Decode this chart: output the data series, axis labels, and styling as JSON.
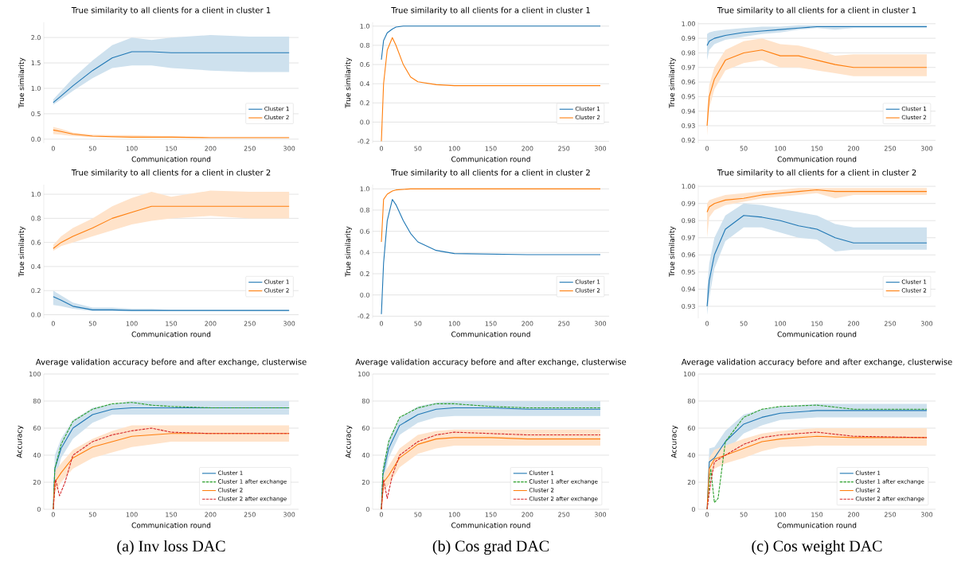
{
  "chart_data": [
    {
      "type": "line",
      "title": "True similarity to all clients for a client in cluster 1",
      "xlabel": "Communication round",
      "ylabel": "True similarity",
      "xlim": [
        -12,
        312
      ],
      "xticks": [
        0,
        50,
        100,
        150,
        200,
        250,
        300
      ],
      "ylim": [
        -0.08,
        2.3
      ],
      "yticks": [
        {
          "value": 0,
          "label": "0.0"
        },
        0.5,
        {
          "value": 1,
          "label": "1.0"
        },
        1.5,
        {
          "value": 2,
          "label": "2.0"
        }
      ],
      "grid": "y",
      "legend": "bottom right",
      "x": [
        0,
        10,
        25,
        50,
        75,
        100,
        125,
        150,
        200,
        250,
        300
      ],
      "series": [
        {
          "name": "Cluster 1",
          "color": "#1f77b4",
          "values": [
            0.72,
            0.85,
            1.05,
            1.35,
            1.6,
            1.72,
            1.72,
            1.7,
            1.7,
            1.7,
            1.7
          ],
          "lower": [
            0.68,
            0.78,
            0.95,
            1.2,
            1.4,
            1.45,
            1.45,
            1.4,
            1.35,
            1.32,
            1.32
          ],
          "upper": [
            0.78,
            0.95,
            1.2,
            1.55,
            1.85,
            2.0,
            1.95,
            2.0,
            2.05,
            2.02,
            2.02
          ]
        },
        {
          "name": "Cluster 2",
          "color": "#ff7f0e",
          "values": [
            0.18,
            0.15,
            0.1,
            0.06,
            0.05,
            0.04,
            0.04,
            0.04,
            0.03,
            0.03,
            0.03
          ],
          "lower": [
            0.1,
            0.09,
            0.06,
            0.04,
            0.03,
            0.03,
            0.03,
            0.03,
            0.03,
            0.03,
            0.03
          ],
          "upper": [
            0.24,
            0.2,
            0.13,
            0.09,
            0.08,
            0.08,
            0.07,
            0.06,
            0.04,
            0.04,
            0.04
          ]
        }
      ]
    },
    {
      "type": "line",
      "title": "True similarity to all clients for a client in cluster 1",
      "xlabel": "Communication round",
      "ylabel": "True similarity",
      "xlim": [
        -12,
        312
      ],
      "xticks": [
        0,
        50,
        100,
        150,
        200,
        250,
        300
      ],
      "ylim": [
        -0.22,
        1.04
      ],
      "yticks": [
        -0.2,
        {
          "value": 0,
          "label": "0.0"
        },
        0.2,
        0.4,
        0.6,
        0.8,
        {
          "value": 1,
          "label": "1.0"
        }
      ],
      "grid": "y",
      "legend": "bottom right",
      "x": [
        0,
        3,
        8,
        15,
        20,
        30,
        40,
        50,
        75,
        100,
        200,
        300
      ],
      "series": [
        {
          "name": "Cluster 1",
          "color": "#1f77b4",
          "values": [
            0.65,
            0.85,
            0.93,
            0.97,
            0.99,
            1.0,
            1.0,
            1.0,
            1.0,
            1.0,
            1.0,
            1.0
          ]
        },
        {
          "name": "Cluster 2",
          "color": "#ff7f0e",
          "values": [
            -0.2,
            0.4,
            0.75,
            0.88,
            0.8,
            0.6,
            0.47,
            0.42,
            0.39,
            0.38,
            0.38,
            0.38
          ]
        }
      ]
    },
    {
      "type": "line",
      "title": "True similarity to all clients for a client in cluster 1",
      "xlabel": "Communication round",
      "ylabel": "True similarity",
      "xlim": [
        -12,
        312
      ],
      "xticks": [
        0,
        50,
        100,
        150,
        200,
        250,
        300
      ],
      "ylim": [
        0.918,
        1.001
      ],
      "yticks": [
        0.92,
        0.93,
        0.94,
        0.95,
        0.96,
        0.97,
        0.98,
        0.99,
        {
          "value": 1,
          "label": "1.00"
        }
      ],
      "grid": "y",
      "legend": "bottom right",
      "x": [
        0,
        3,
        10,
        25,
        50,
        75,
        100,
        125,
        150,
        175,
        200,
        250,
        300
      ],
      "series": [
        {
          "name": "Cluster 1",
          "color": "#1f77b4",
          "values": [
            0.985,
            0.988,
            0.99,
            0.992,
            0.994,
            0.995,
            0.996,
            0.997,
            0.998,
            0.998,
            0.998,
            0.998,
            0.998
          ],
          "lower": [
            0.975,
            0.982,
            0.986,
            0.989,
            0.991,
            0.993,
            0.994,
            0.996,
            0.997,
            0.996,
            0.997,
            0.997,
            0.997
          ],
          "upper": [
            0.993,
            0.994,
            0.995,
            0.996,
            0.997,
            0.998,
            0.998,
            0.999,
            0.999,
            0.999,
            0.999,
            0.999,
            0.999
          ]
        },
        {
          "name": "Cluster 2",
          "color": "#ff7f0e",
          "values": [
            0.93,
            0.95,
            0.962,
            0.975,
            0.98,
            0.982,
            0.978,
            0.978,
            0.975,
            0.972,
            0.97,
            0.97,
            0.97
          ],
          "lower": [
            0.923,
            0.942,
            0.955,
            0.968,
            0.973,
            0.975,
            0.97,
            0.97,
            0.968,
            0.966,
            0.964,
            0.964,
            0.964
          ],
          "upper": [
            0.94,
            0.958,
            0.97,
            0.982,
            0.988,
            0.99,
            0.986,
            0.985,
            0.982,
            0.978,
            0.979,
            0.979,
            0.979
          ]
        }
      ]
    },
    {
      "type": "line",
      "title": "True similarity to all clients for a client in cluster 2",
      "xlabel": "Communication round",
      "ylabel": "True similarity",
      "xlim": [
        -12,
        312
      ],
      "xticks": [
        0,
        50,
        100,
        150,
        200,
        250,
        300
      ],
      "ylim": [
        -0.03,
        1.08
      ],
      "yticks": [
        {
          "value": 0,
          "label": "0.0"
        },
        0.2,
        0.4,
        0.6,
        0.8,
        {
          "value": 1,
          "label": "1.0"
        }
      ],
      "grid": "y",
      "legend": "bottom right",
      "x": [
        0,
        10,
        25,
        50,
        75,
        100,
        125,
        150,
        200,
        250,
        300
      ],
      "series": [
        {
          "name": "Cluster 1",
          "color": "#1f77b4",
          "values": [
            0.15,
            0.12,
            0.07,
            0.04,
            0.04,
            0.035,
            0.035,
            0.035,
            0.035,
            0.035,
            0.035
          ],
          "lower": [
            0.08,
            0.07,
            0.05,
            0.03,
            0.03,
            0.03,
            0.03,
            0.03,
            0.03,
            0.03,
            0.03
          ],
          "upper": [
            0.2,
            0.16,
            0.1,
            0.06,
            0.06,
            0.05,
            0.05,
            0.04,
            0.04,
            0.04,
            0.04
          ]
        },
        {
          "name": "Cluster 2",
          "color": "#ff7f0e",
          "values": [
            0.55,
            0.6,
            0.65,
            0.72,
            0.8,
            0.85,
            0.9,
            0.9,
            0.9,
            0.9,
            0.9
          ],
          "lower": [
            0.53,
            0.57,
            0.6,
            0.65,
            0.7,
            0.75,
            0.78,
            0.8,
            0.82,
            0.8,
            0.8
          ],
          "upper": [
            0.58,
            0.65,
            0.72,
            0.8,
            0.9,
            0.97,
            1.02,
            0.98,
            1.03,
            1.02,
            1.02
          ]
        }
      ]
    },
    {
      "type": "line",
      "title": "True similarity to all clients for a client in cluster 2",
      "xlabel": "Communication round",
      "ylabel": "True similarity",
      "xlim": [
        -12,
        312
      ],
      "xticks": [
        0,
        50,
        100,
        150,
        200,
        250,
        300
      ],
      "ylim": [
        -0.22,
        1.04
      ],
      "yticks": [
        -0.2,
        {
          "value": 0,
          "label": "0.0"
        },
        0.2,
        0.4,
        0.6,
        0.8,
        {
          "value": 1,
          "label": "1.0"
        }
      ],
      "grid": "y",
      "legend": "bottom right",
      "x": [
        0,
        3,
        8,
        15,
        20,
        30,
        40,
        50,
        75,
        100,
        200,
        300
      ],
      "series": [
        {
          "name": "Cluster 1",
          "color": "#1f77b4",
          "values": [
            -0.18,
            0.3,
            0.7,
            0.9,
            0.85,
            0.7,
            0.58,
            0.5,
            0.42,
            0.39,
            0.38,
            0.38
          ]
        },
        {
          "name": "Cluster 2",
          "color": "#ff7f0e",
          "values": [
            0.5,
            0.9,
            0.95,
            0.98,
            0.99,
            0.995,
            1.0,
            1.0,
            1.0,
            1.0,
            1.0,
            1.0
          ]
        }
      ]
    },
    {
      "type": "line",
      "title": "True similarity to all clients for a client in cluster 2",
      "xlabel": "Communication round",
      "ylabel": "True similarity",
      "xlim": [
        -12,
        312
      ],
      "xticks": [
        0,
        50,
        100,
        150,
        200,
        250,
        300
      ],
      "ylim": [
        0.923,
        1.001
      ],
      "yticks": [
        0.93,
        0.94,
        0.95,
        0.96,
        0.97,
        0.98,
        0.99,
        {
          "value": 1,
          "label": "1.00"
        }
      ],
      "grid": "y",
      "legend": "bottom right",
      "x": [
        0,
        3,
        10,
        25,
        50,
        75,
        100,
        125,
        150,
        175,
        200,
        250,
        300
      ],
      "series": [
        {
          "name": "Cluster 1",
          "color": "#1f77b4",
          "values": [
            0.93,
            0.945,
            0.96,
            0.975,
            0.983,
            0.982,
            0.98,
            0.977,
            0.975,
            0.97,
            0.967,
            0.967,
            0.967
          ],
          "lower": [
            0.925,
            0.935,
            0.952,
            0.968,
            0.976,
            0.976,
            0.973,
            0.97,
            0.969,
            0.962,
            0.963,
            0.963,
            0.963
          ],
          "upper": [
            0.94,
            0.955,
            0.97,
            0.983,
            0.99,
            0.989,
            0.987,
            0.985,
            0.983,
            0.978,
            0.976,
            0.976,
            0.976
          ]
        },
        {
          "name": "Cluster 2",
          "color": "#ff7f0e",
          "values": [
            0.985,
            0.988,
            0.99,
            0.992,
            0.993,
            0.995,
            0.996,
            0.997,
            0.998,
            0.997,
            0.997,
            0.997,
            0.997
          ],
          "lower": [
            0.97,
            0.982,
            0.986,
            0.989,
            0.991,
            0.993,
            0.994,
            0.995,
            0.996,
            0.993,
            0.995,
            0.995,
            0.995
          ],
          "upper": [
            0.99,
            0.992,
            0.993,
            0.995,
            0.996,
            0.997,
            0.998,
            0.999,
            0.999,
            0.999,
            0.999,
            0.999,
            0.999
          ]
        }
      ]
    },
    {
      "type": "line",
      "title": "Average validation accuracy before and after exchange, clusterwise",
      "xlabel": "Communication round",
      "ylabel": "Accuracy",
      "annotations": [
        "(a) Inv loss DAC"
      ],
      "xlim": [
        -12,
        312
      ],
      "xticks": [
        0,
        50,
        100,
        150,
        200,
        250,
        300
      ],
      "ylim": [
        0,
        100
      ],
      "yticks": [
        0,
        20,
        40,
        60,
        80,
        100
      ],
      "grid": "y",
      "legend": "bottom right",
      "series": [
        {
          "name": "Cluster 1",
          "color": "#1f77b4",
          "x": [
            0,
            2,
            10,
            25,
            50,
            75,
            100,
            125,
            150,
            200,
            300
          ],
          "values": [
            0,
            30,
            45,
            60,
            70,
            74,
            75,
            75,
            75,
            75,
            75
          ],
          "lower": [
            0,
            20,
            38,
            52,
            64,
            70,
            70,
            70,
            70,
            70,
            70
          ],
          "upper": [
            0,
            40,
            52,
            66,
            75,
            78,
            80,
            80,
            80,
            80,
            80
          ]
        },
        {
          "name": "Cluster 1 after exchange",
          "color": "#2ca02c",
          "line_style": "dashed",
          "x": [
            0,
            2,
            10,
            25,
            50,
            75,
            100,
            125,
            150,
            200,
            300
          ],
          "values": [
            0,
            30,
            48,
            65,
            74,
            78,
            79,
            77,
            76,
            75,
            75
          ]
        },
        {
          "name": "Cluster 2",
          "color": "#ff7f0e",
          "x": [
            0,
            2,
            10,
            25,
            50,
            75,
            100,
            125,
            150,
            200,
            300
          ],
          "values": [
            0,
            20,
            27,
            38,
            46,
            50,
            54,
            55,
            56,
            56,
            56
          ],
          "lower": [
            0,
            12,
            20,
            30,
            38,
            42,
            46,
            48,
            50,
            50,
            50
          ],
          "upper": [
            0,
            28,
            34,
            44,
            52,
            58,
            62,
            62,
            62,
            62,
            62
          ]
        },
        {
          "name": "Cluster 2 after exchange",
          "color": "#d62728",
          "line_style": "dashed",
          "x": [
            0,
            3,
            8,
            15,
            25,
            50,
            75,
            100,
            125,
            150,
            200,
            300
          ],
          "values": [
            0,
            22,
            10,
            20,
            40,
            50,
            55,
            58,
            60,
            57,
            56,
            56
          ]
        }
      ]
    },
    {
      "type": "line",
      "title": "Average validation accuracy before and after exchange, clusterwise",
      "xlabel": "Communication round",
      "ylabel": "Accuracy",
      "annotations": [
        "(b) Cos grad DAC"
      ],
      "xlim": [
        -12,
        312
      ],
      "xticks": [
        0,
        50,
        100,
        150,
        200,
        250,
        300
      ],
      "ylim": [
        0,
        100
      ],
      "yticks": [
        0,
        20,
        40,
        60,
        80,
        100
      ],
      "grid": "y",
      "legend": "bottom right",
      "series": [
        {
          "name": "Cluster 1",
          "color": "#1f77b4",
          "x": [
            0,
            2,
            10,
            25,
            50,
            75,
            100,
            150,
            200,
            300
          ],
          "values": [
            0,
            25,
            45,
            62,
            70,
            74,
            75,
            75,
            74,
            74
          ],
          "lower": [
            0,
            18,
            38,
            55,
            64,
            68,
            69,
            69,
            69,
            69
          ],
          "upper": [
            0,
            32,
            52,
            68,
            76,
            79,
            80,
            80,
            80,
            80
          ]
        },
        {
          "name": "Cluster 1 after exchange",
          "color": "#2ca02c",
          "line_style": "dashed",
          "x": [
            0,
            2,
            10,
            25,
            50,
            75,
            100,
            150,
            200,
            300
          ],
          "values": [
            0,
            28,
            50,
            68,
            75,
            78,
            78,
            76,
            75,
            75
          ]
        },
        {
          "name": "Cluster 2",
          "color": "#ff7f0e",
          "x": [
            0,
            3,
            10,
            25,
            50,
            75,
            100,
            150,
            200,
            300
          ],
          "values": [
            0,
            20,
            25,
            38,
            48,
            52,
            53,
            53,
            52,
            52
          ],
          "lower": [
            0,
            14,
            18,
            31,
            41,
            45,
            47,
            47,
            47,
            47
          ],
          "upper": [
            0,
            26,
            32,
            45,
            55,
            58,
            59,
            59,
            59,
            59
          ]
        },
        {
          "name": "Cluster 2 after exchange",
          "color": "#d62728",
          "line_style": "dashed",
          "x": [
            0,
            3,
            8,
            15,
            25,
            50,
            75,
            100,
            150,
            200,
            300
          ],
          "values": [
            0,
            22,
            8,
            25,
            40,
            50,
            55,
            57,
            56,
            55,
            55
          ]
        }
      ]
    },
    {
      "type": "line",
      "title": "Average validation accuracy before and after exchange, clusterwise",
      "xlabel": "Communication round",
      "ylabel": "Accuracy",
      "annotations": [
        "(c) Cos weight DAC"
      ],
      "xlim": [
        -12,
        312
      ],
      "xticks": [
        0,
        50,
        100,
        150,
        200,
        250,
        300
      ],
      "ylim": [
        0,
        100
      ],
      "yticks": [
        0,
        20,
        40,
        60,
        80,
        100
      ],
      "grid": "y",
      "legend": "bottom right",
      "series": [
        {
          "name": "Cluster 1",
          "color": "#1f77b4",
          "x": [
            0,
            3,
            10,
            25,
            50,
            75,
            100,
            150,
            200,
            300
          ],
          "values": [
            0,
            35,
            38,
            50,
            63,
            68,
            71,
            73,
            73,
            73
          ],
          "lower": [
            0,
            25,
            30,
            42,
            56,
            62,
            66,
            68,
            68,
            68
          ],
          "upper": [
            0,
            45,
            46,
            58,
            70,
            74,
            76,
            78,
            78,
            78
          ]
        },
        {
          "name": "Cluster 1 after exchange",
          "color": "#2ca02c",
          "line_style": "dashed",
          "x": [
            0,
            5,
            10,
            15,
            25,
            50,
            75,
            100,
            150,
            200,
            300
          ],
          "values": [
            0,
            30,
            5,
            8,
            50,
            68,
            74,
            76,
            77,
            74,
            74
          ]
        },
        {
          "name": "Cluster 2",
          "color": "#ff7f0e",
          "x": [
            0,
            3,
            10,
            25,
            50,
            75,
            100,
            150,
            200,
            300
          ],
          "values": [
            0,
            30,
            37,
            40,
            45,
            50,
            52,
            54,
            53,
            53
          ],
          "lower": [
            0,
            22,
            30,
            34,
            38,
            43,
            46,
            47,
            47,
            47
          ],
          "upper": [
            0,
            38,
            44,
            47,
            52,
            56,
            58,
            60,
            60,
            60
          ]
        },
        {
          "name": "Cluster 2 after exchange",
          "color": "#d62728",
          "line_style": "dashed",
          "x": [
            0,
            5,
            10,
            25,
            50,
            75,
            100,
            150,
            200,
            300
          ],
          "values": [
            0,
            20,
            35,
            40,
            48,
            53,
            55,
            57,
            54,
            53
          ]
        }
      ]
    }
  ]
}
